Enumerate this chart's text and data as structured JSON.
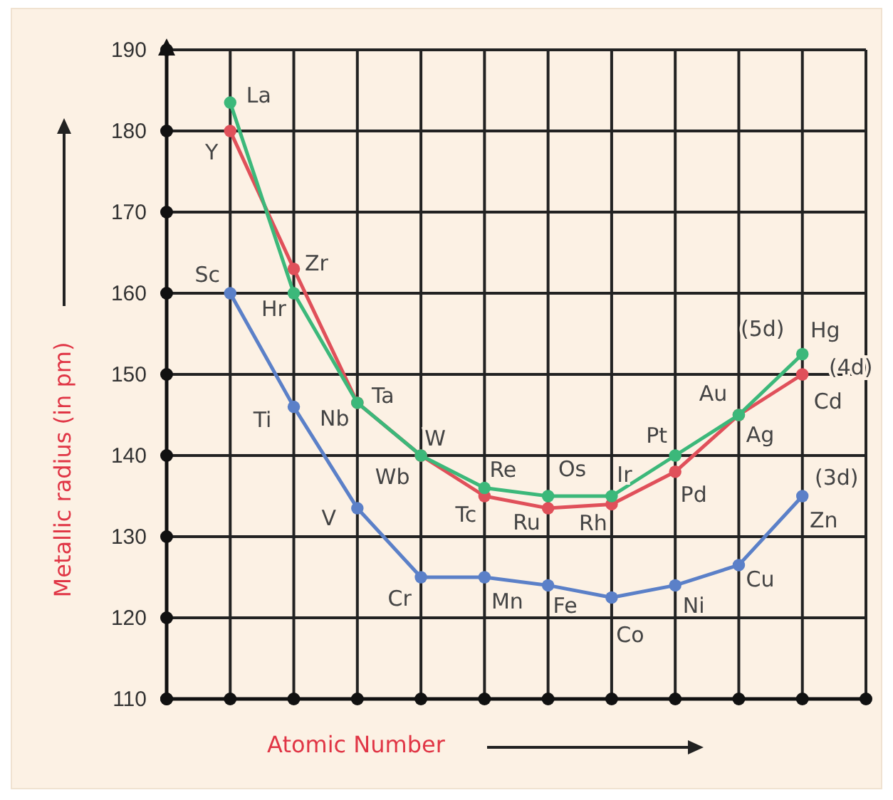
{
  "chart_data": {
    "type": "line",
    "xlabel": "Atomic Number",
    "ylabel": "Metallic radius (in pm)",
    "categories": [
      null,
      null,
      null,
      null,
      null,
      null,
      null,
      null,
      null,
      null
    ],
    "ylim": [
      110,
      190
    ],
    "yticks": [
      110,
      120,
      130,
      140,
      150,
      160,
      170,
      180,
      190
    ],
    "grid": true,
    "tick_labels": "y",
    "marker": "circle",
    "line_style": "solid",
    "series": [
      {
        "color": "#5b80c8",
        "values": [
          160,
          146,
          133.5,
          125,
          125,
          124,
          122.5,
          124,
          126.5,
          135
        ]
      },
      {
        "color": "#e0505a",
        "values": [
          180,
          163,
          146.5,
          140,
          135,
          133.5,
          134,
          138,
          145,
          150
        ]
      },
      {
        "color": "#3cb87a",
        "values": [
          183.5,
          160,
          146.5,
          140,
          136,
          135,
          135,
          140,
          145,
          152.5
        ]
      }
    ],
    "annotations": [
      "Sc",
      "Ti",
      "V",
      "Cr",
      "Mn",
      "Fe",
      "Co",
      "Ni",
      "Cu",
      "Zn",
      "(3d)",
      "Y",
      "Zr",
      "Nb",
      "Wb",
      "Tc",
      "Ru",
      "Rh",
      "Pd",
      "Ag",
      "Cd",
      "(4d)",
      "La",
      "Hr",
      "Ta",
      "W",
      "Re",
      "Os",
      "Ir",
      "Pt",
      "Au",
      "Hg",
      "(5d)"
    ]
  }
}
